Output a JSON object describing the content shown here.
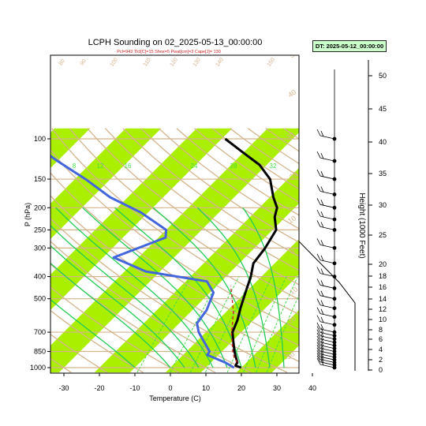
{
  "chart_data": {
    "type": "line",
    "title": "LCPH Sounding on 02_2025-05-13_00:00:00",
    "subtitle": "Pcl=943 Tlcl[C]=15 Shox=5 Pwat[cm]=3 Cape[J]= 130",
    "datetime_label": "DT: 2025-05-12_00:00:00",
    "xlabel": "Temperature (C)",
    "ylabel": "P (hPa)",
    "y2label": "Height (1000 Feet)",
    "x_ticks": [
      "-30",
      "-20",
      "-10",
      "0",
      "10",
      "20",
      "30",
      "40"
    ],
    "y_ticks": [
      "100",
      "150",
      "200",
      "250",
      "300",
      "400",
      "500",
      "700",
      "850",
      "1000"
    ],
    "y2_ticks": [
      "0",
      "2",
      "4",
      "6",
      "8",
      "10",
      "12",
      "14",
      "16",
      "18",
      "20",
      "25",
      "30",
      "35",
      "40",
      "45",
      "50"
    ],
    "mixing_ratio_labels": [
      "8",
      "12",
      "16",
      "24",
      "28",
      "32"
    ],
    "dry_adiabat_labels": [
      "80",
      "90",
      "100",
      "110",
      "120",
      "130",
      "140",
      "150"
    ],
    "moist_adiabat_labels": [
      "50",
      "40",
      "30",
      "20",
      "10",
      "0",
      "-10",
      "-20",
      "-30"
    ],
    "series": [
      {
        "name": "Temperature",
        "color": "#000000",
        "points": [
          [
            19.9,
            1000
          ],
          [
            17.8,
            980
          ],
          [
            17.4,
            950
          ],
          [
            15.5,
            900
          ],
          [
            13.5,
            850
          ],
          [
            10,
            760
          ],
          [
            7.5,
            700
          ],
          [
            5.5,
            620
          ],
          [
            3,
            550
          ],
          [
            0,
            470
          ],
          [
            -3,
            400
          ],
          [
            -6,
            350
          ],
          [
            -7,
            300
          ],
          [
            -9,
            250
          ],
          [
            -13,
            220
          ],
          [
            -15,
            200
          ],
          [
            -19,
            180
          ],
          [
            -25,
            150
          ],
          [
            -32,
            130
          ],
          [
            -40,
            115
          ],
          [
            -49,
            100
          ]
        ]
      },
      {
        "name": "Dewpoint",
        "color": "#4466dd",
        "points": [
          [
            17.9,
            1000
          ],
          [
            14,
            950
          ],
          [
            6.8,
            880
          ],
          [
            6.5,
            850
          ],
          [
            1,
            750
          ],
          [
            -2,
            700
          ],
          [
            -5,
            640
          ],
          [
            -6,
            560
          ],
          [
            -9,
            470
          ],
          [
            -14,
            420
          ],
          [
            -34,
            380
          ],
          [
            -47,
            330
          ],
          [
            -38,
            270
          ],
          [
            -40,
            250
          ],
          [
            -52,
            210
          ],
          [
            -65,
            180
          ],
          [
            -77,
            150
          ],
          [
            -90,
            125
          ],
          [
            -105,
            100
          ]
        ]
      },
      {
        "name": "Parcel",
        "color": "#cc2222",
        "points": [
          [
            17.4,
            950
          ],
          [
            15,
            900
          ],
          [
            13,
            850
          ],
          [
            10.5,
            780
          ],
          [
            8,
            720
          ],
          [
            5,
            640
          ],
          [
            2,
            570
          ],
          [
            -2,
            500
          ],
          [
            -6,
            440
          ]
        ]
      }
    ],
    "wind_barbs": [
      "1000",
      "975",
      "950",
      "925",
      "900",
      "875",
      "850",
      "825",
      "800",
      "775",
      "750",
      "725",
      "700",
      "650",
      "600",
      "550",
      "500",
      "450",
      "400",
      "350",
      "300",
      "250",
      "225",
      "200",
      "175",
      "150",
      "125",
      "100"
    ],
    "grid": true,
    "legend": "none",
    "colors": {
      "isotherm_band": "#aaee00",
      "dry_adiabat": "#d4b48c",
      "moist_adiabat": "#22cc55",
      "mixing_ratio": "#44dd44",
      "temperature": "#000000",
      "dewpoint": "#4466dd",
      "parcel": "#cc2222"
    }
  }
}
